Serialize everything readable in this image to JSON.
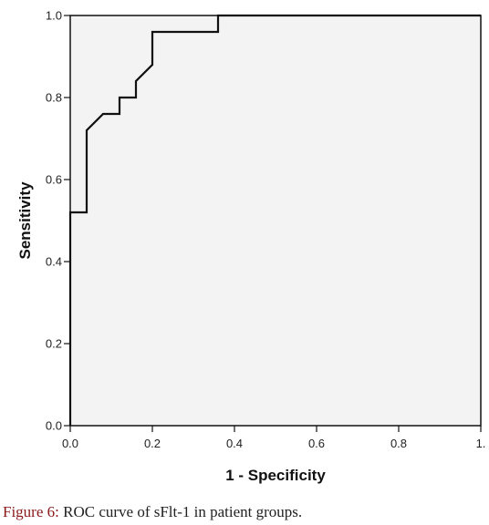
{
  "chart_data": {
    "type": "line",
    "title": "",
    "xlabel": "1 - Specificity",
    "ylabel": "Sensitivity",
    "xlim": [
      0,
      1
    ],
    "ylim": [
      0,
      1
    ],
    "x_ticks": [
      "0.0",
      "0.2",
      "0.4",
      "0.6",
      "0.8",
      "1."
    ],
    "y_ticks": [
      "0.0",
      "0.2",
      "0.4",
      "0.6",
      "0.8",
      "1.0"
    ],
    "grid": false,
    "legend": "none",
    "series": [
      {
        "x": [
          0,
          0,
          0.04,
          0.04,
          0.08,
          0.12,
          0.12,
          0.16,
          0.16,
          0.2,
          0.2,
          0.36,
          0.36,
          1.0
        ],
        "y": [
          0,
          0.52,
          0.52,
          0.72,
          0.76,
          0.76,
          0.8,
          0.8,
          0.84,
          0.88,
          0.96,
          0.96,
          1.0,
          1.0
        ]
      }
    ],
    "plot_background": "#f3f3f3",
    "line_color": "#111111"
  },
  "caption": {
    "label": "Figure 6:",
    "text": " ROC curve of sFlt-1 in patient groups."
  }
}
